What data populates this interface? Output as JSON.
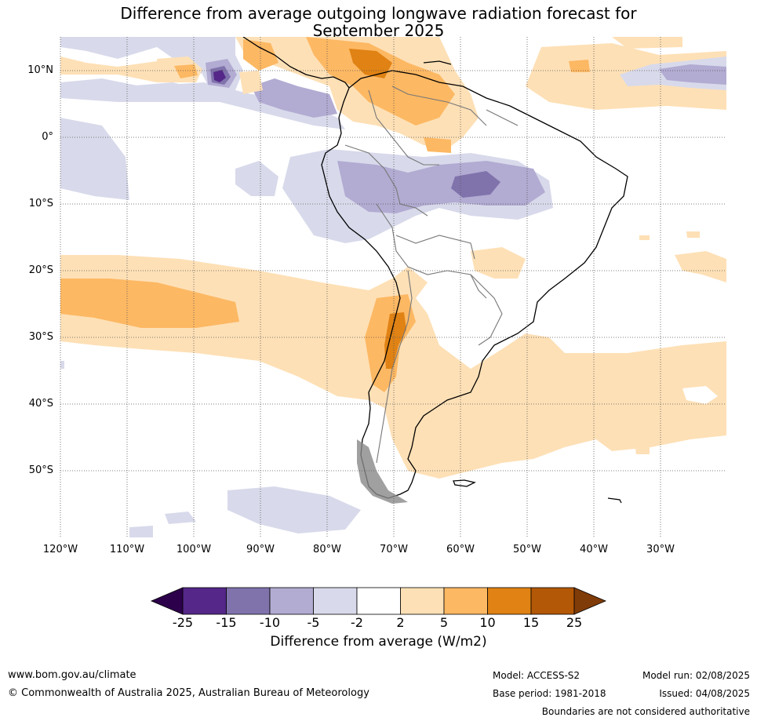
{
  "title_line1": "Difference from average outgoing longwave radiation forecast for",
  "title_line2": "September 2025",
  "lat_labels": [
    "10°N",
    "0°",
    "10°S",
    "20°S",
    "30°S",
    "40°S",
    "50°S"
  ],
  "lon_labels": [
    "120°W",
    "110°W",
    "100°W",
    "90°W",
    "80°W",
    "70°W",
    "60°W",
    "50°W",
    "40°W",
    "30°W"
  ],
  "colorbar": {
    "ticks": [
      "-25",
      "-15",
      "-10",
      "-5",
      "-2",
      "2",
      "5",
      "10",
      "15",
      "25"
    ],
    "label": "Difference from average (W/m2)",
    "colors": {
      "below": "#2d004b",
      "n25_15": "#542788",
      "n15_10": "#8073ac",
      "n10_5": "#b2abd2",
      "n5_2": "#d8daeb",
      "n2_2": "#ffffff",
      "p2_5": "#fee0b6",
      "p5_10": "#fdb863",
      "p10_15": "#e08214",
      "p15_25": "#b35806",
      "above": "#7f3b08"
    }
  },
  "footer": {
    "website": "www.bom.gov.au/climate",
    "copyright": "© Commonwealth of Australia 2025, Australian Bureau of Meteorology",
    "model": "Model: ACCESS-S2",
    "base_period": "Base period: 1981-2018",
    "model_run": "Model run: 02/08/2025",
    "issued": "Issued: 04/08/2025",
    "disclaimer": "Boundaries are not considered authoritative"
  }
}
